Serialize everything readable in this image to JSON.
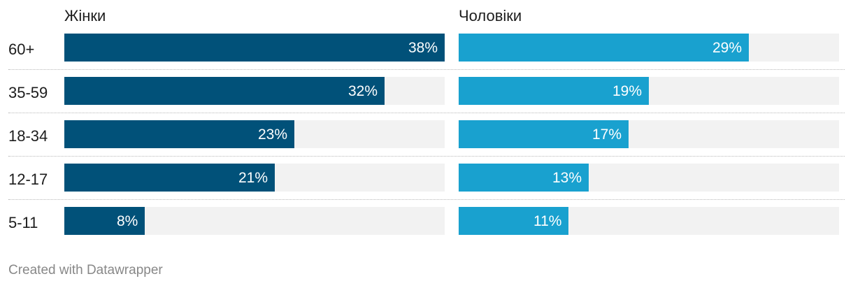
{
  "chart_data": {
    "type": "bar",
    "orientation": "horizontal",
    "categories": [
      "60+",
      "35-59",
      "18-34",
      "12-17",
      "5-11"
    ],
    "series": [
      {
        "name": "Жінки",
        "values": [
          38,
          32,
          23,
          21,
          8
        ],
        "labels": [
          "38%",
          "32%",
          "23%",
          "21%",
          "8%"
        ],
        "color": "#015179"
      },
      {
        "name": "Чоловіки",
        "values": [
          29,
          19,
          17,
          13,
          11
        ],
        "labels": [
          "29%",
          "19%",
          "17%",
          "13%",
          "11%"
        ],
        "color": "#19a1cf"
      }
    ],
    "xlim": [
      0,
      38
    ],
    "track_color": "#f2f2f2",
    "layout": "small-multiples"
  },
  "footer": "Created with Datawrapper"
}
